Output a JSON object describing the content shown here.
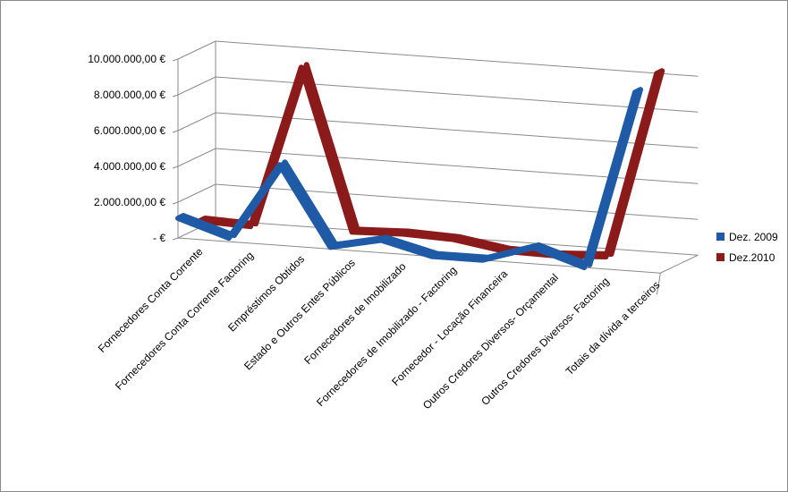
{
  "chart_data": {
    "type": "line",
    "title": "",
    "xlabel": "",
    "ylabel": "",
    "categories": [
      "Fornecedores Conta Corrente",
      "Fornecedores Conta Corrente Factoring",
      "Empréstimos Obtidos",
      "Estado e Outros Entes Públicos",
      "Fornecedores de Imobilizado",
      "Fornecedores de Imobilizado - Factoring",
      "Fornecedor - Locação Financeira",
      "Outros Credores Diversos- Orçamental",
      "Outros Credores Diversos- Factoring",
      "Totais da dívida a terceiros"
    ],
    "yticks": [
      "-  €",
      "2.000.000,00 €",
      "4.000.000,00 €",
      "6.000.000,00 €",
      "8.000.000,00 €",
      "10.000.000,00 €"
    ],
    "ylim": [
      0,
      10000000
    ],
    "grid": true,
    "legend_position": "right",
    "series": [
      {
        "name": "Dez. 2009",
        "color": "#1f5aa6",
        "values": [
          1100000,
          200000,
          4500000,
          100000,
          700000,
          0,
          0,
          900000,
          0,
          10000000
        ]
      },
      {
        "name": "Dez.2010",
        "color": "#8b1a1a",
        "values": [
          700000,
          600000,
          9700000,
          700000,
          800000,
          700000,
          250000,
          200000,
          350000,
          10800000
        ]
      }
    ]
  }
}
